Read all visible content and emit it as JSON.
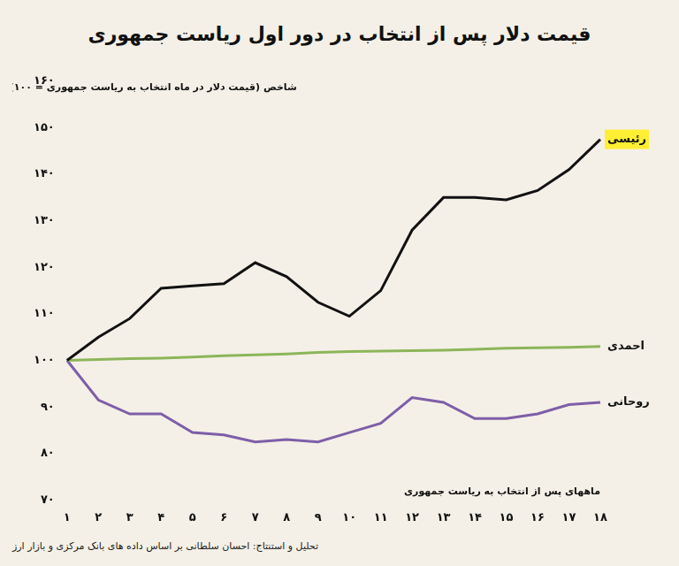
{
  "chart_data": {
    "type": "line",
    "title": "قیمت دلار پس از انتخاب در دور اول ریاست جمهوری",
    "ylabel": "شاخص (قیمت دلار در ماه انتخاب به ریاست جمهوری = ۱۰۰)",
    "xlabel": "ماههای پس از انتخاب به ریاست جمهوری",
    "source": "تحلیل و استنتاج: احسان سلطانی بر اساس داده های بانک مرکزی و بازار ارز",
    "categories": [
      "۱",
      "۲",
      "۳",
      "۴",
      "۵",
      "۶",
      "۷",
      "۸",
      "۹",
      "۱۰",
      "۱۱",
      "۱۲",
      "۱۳",
      "۱۴",
      "۱۵",
      "۱۶",
      "۱۷",
      "۱۸"
    ],
    "series": [
      {
        "name": "رئیسی",
        "color": "#111111",
        "values": [
          100,
          105,
          109,
          115.5,
          116,
          116.5,
          121,
          118,
          112.5,
          109.5,
          115,
          128,
          135,
          135,
          134.5,
          136.5,
          141,
          147.5
        ]
      },
      {
        "name": "احمدی",
        "color": "#8db55a",
        "values": [
          100,
          100.2,
          100.4,
          100.5,
          100.7,
          101,
          101.2,
          101.4,
          101.7,
          101.9,
          102,
          102.1,
          102.2,
          102.4,
          102.6,
          102.7,
          102.8,
          103
        ]
      },
      {
        "name": "روحانی",
        "color": "#7e5ea8",
        "values": [
          100,
          91.5,
          88.5,
          88.5,
          84.5,
          84,
          82.5,
          83,
          82.5,
          84.5,
          86.5,
          92,
          91,
          87.5,
          87.5,
          88.5,
          90.5,
          91
        ]
      }
    ],
    "ylim": [
      70,
      160
    ],
    "yticks": [
      {
        "value": 70,
        "label": "۷۰"
      },
      {
        "value": 80,
        "label": "۸۰"
      },
      {
        "value": 90,
        "label": "۹۰"
      },
      {
        "value": 100,
        "label": "۱۰۰"
      },
      {
        "value": 110,
        "label": "۱۱۰"
      },
      {
        "value": 120,
        "label": "۱۲۰"
      },
      {
        "value": 130,
        "label": "۱۳۰"
      },
      {
        "value": 140,
        "label": "۱۴۰"
      },
      {
        "value": 150,
        "label": "۱۵۰"
      },
      {
        "value": 160,
        "label": "۱۶۰"
      }
    ],
    "grid": false
  }
}
